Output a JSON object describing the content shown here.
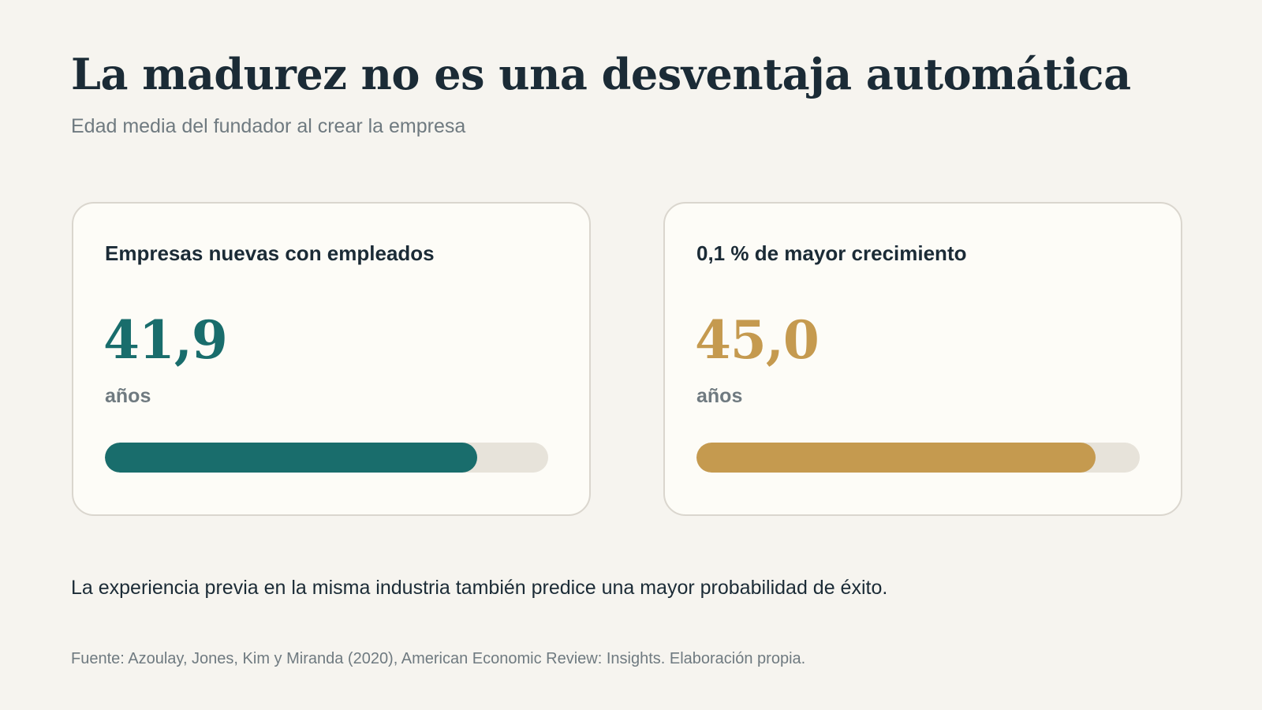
{
  "colors": {
    "background": "#f6f4ef",
    "primary_teal": "#196d6c",
    "accent_gold": "#c59a4f",
    "track": "#e7e3da",
    "text_dark": "#1b2b36",
    "text_muted": "#6f7a80"
  },
  "chart_data": {
    "type": "bar",
    "title": "La madurez no es una desventaja automática",
    "subtitle": "Edad media del fundador al crear la empresa",
    "categories": [
      "Empresas nuevas con empleados",
      "0,1 % de mayor crecimiento"
    ],
    "values": [
      41.9,
      45.0
    ],
    "value_labels": [
      "41,9",
      "45,0"
    ],
    "unit": "años",
    "bar_fill_fraction": [
      0.84,
      0.9
    ],
    "colors": [
      "#196d6c",
      "#c59a4f"
    ]
  },
  "note": "La experiencia previa en la misma industria también predice una mayor probabilidad de éxito.",
  "source": "Fuente: Azoulay, Jones, Kim y Miranda (2020), American Economic Review: Insights. Elaboración propia."
}
